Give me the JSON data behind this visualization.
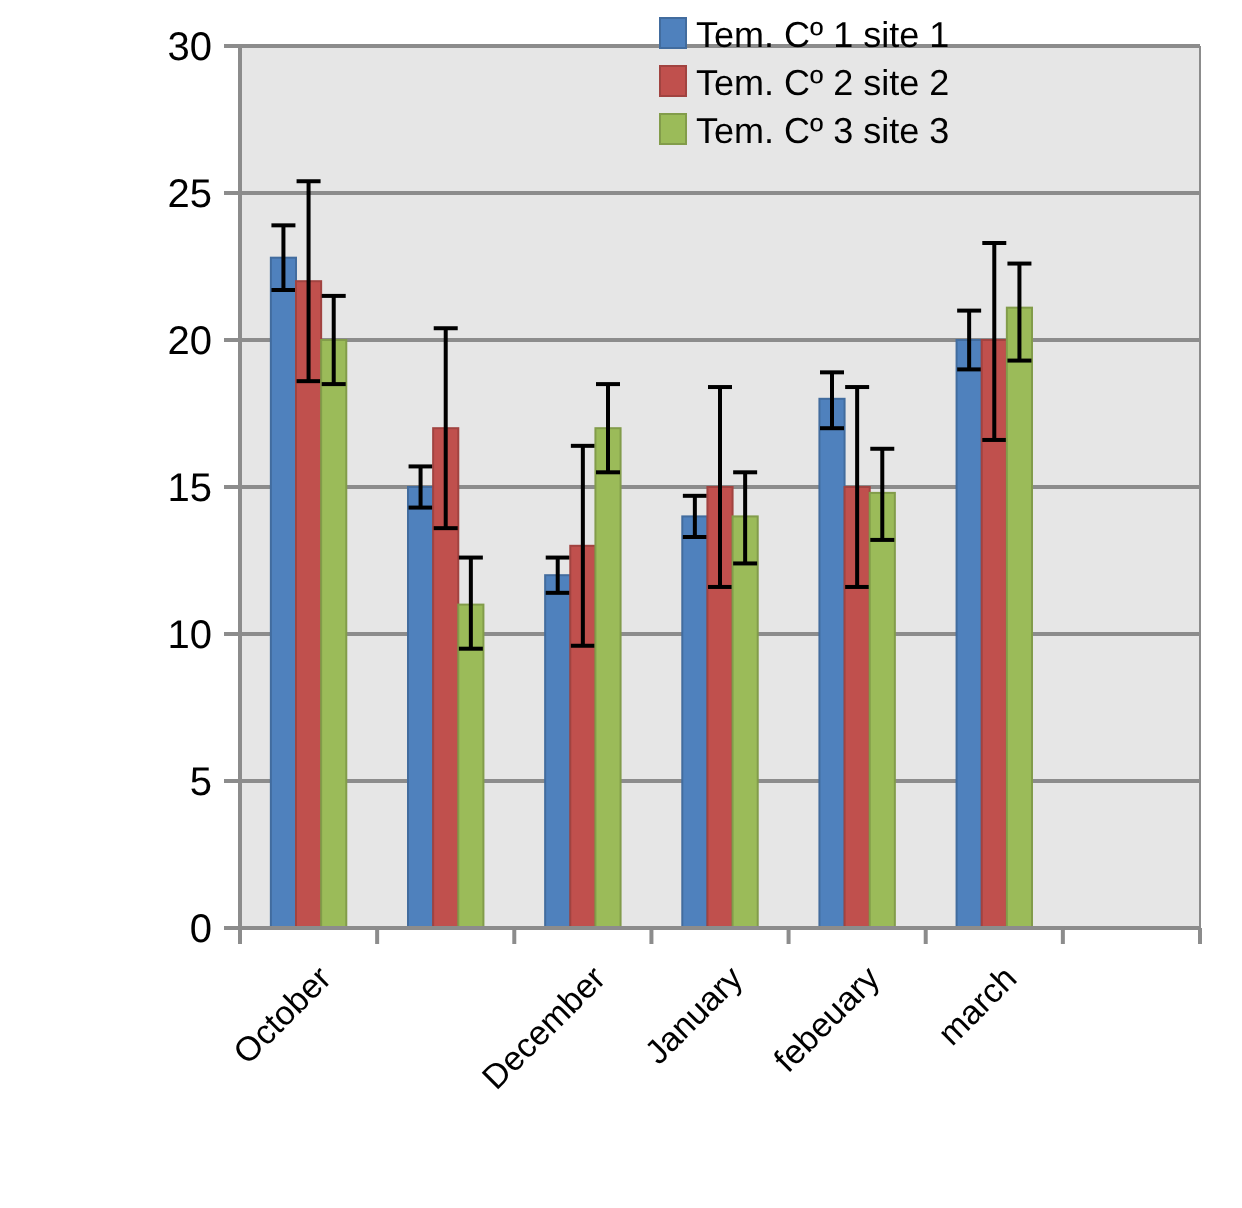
{
  "chart_data": {
    "type": "bar",
    "categories": [
      "October",
      null,
      "December",
      "January",
      "febeuary",
      "march",
      null
    ],
    "series": [
      {
        "name": "Tem. Cº 1 site 1",
        "color": "#4f81bd",
        "values": [
          22.8,
          15,
          12,
          14,
          18,
          20,
          null
        ],
        "errors": [
          [
            21.7,
            23.9
          ],
          [
            14.3,
            15.7
          ],
          [
            11.4,
            12.6
          ],
          [
            13.3,
            14.7
          ],
          [
            17,
            18.9
          ],
          [
            19,
            21
          ],
          null
        ]
      },
      {
        "name": "Tem. Cº 2 site 2",
        "color": "#c0504d",
        "values": [
          22,
          17,
          13,
          15,
          15,
          20,
          null
        ],
        "errors": [
          [
            18.6,
            25.4
          ],
          [
            13.6,
            20.4
          ],
          [
            9.6,
            16.4
          ],
          [
            11.6,
            18.4
          ],
          [
            11.6,
            18.4
          ],
          [
            16.6,
            23.3
          ],
          null
        ]
      },
      {
        "name": "Tem. Cº 3 site 3",
        "color": "#9bbb59",
        "values": [
          20,
          11,
          17,
          14,
          14.8,
          21.1,
          null
        ],
        "errors": [
          [
            18.5,
            21.5
          ],
          [
            9.5,
            12.6
          ],
          [
            15.5,
            18.5
          ],
          [
            12.4,
            15.5
          ],
          [
            13.2,
            16.3
          ],
          [
            19.3,
            22.6
          ],
          null
        ]
      }
    ],
    "ylim": [
      0,
      30
    ],
    "yticks": [
      0,
      5,
      10,
      15,
      20,
      25,
      30
    ],
    "grid": "y",
    "legend": "top right"
  }
}
